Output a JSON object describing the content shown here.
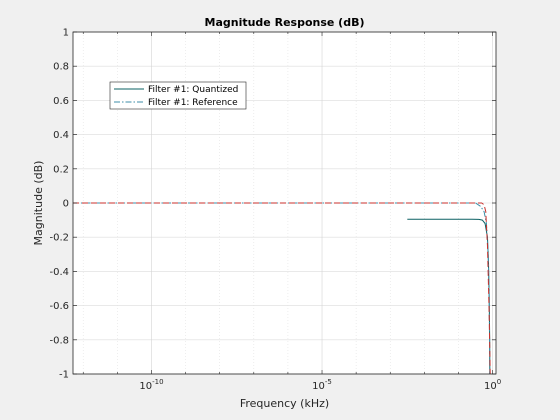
{
  "chart_data": {
    "type": "line",
    "title": "Magnitude Response (dB)",
    "xlabel": "Frequency (kHz)",
    "ylabel": "Magnitude (dB)",
    "x_scale": "log",
    "xlim_exp": [
      -12.3,
      0.1
    ],
    "ylim": [
      -1,
      1
    ],
    "x_tick_exponents": [
      -10,
      -5,
      0
    ],
    "x_tick_labels": [
      {
        "base": "10",
        "exp": "-10"
      },
      {
        "base": "10",
        "exp": "-5"
      },
      {
        "base": "10",
        "exp": "0"
      }
    ],
    "y_ticks": [
      -1,
      -0.8,
      -0.6,
      -0.4,
      -0.2,
      0,
      0.2,
      0.4,
      0.6,
      0.8,
      1
    ],
    "y_tick_labels": [
      "-1",
      "-0.8",
      "-0.6",
      "-0.4",
      "-0.2",
      "0",
      "0.2",
      "0.4",
      "0.6",
      "0.8",
      "1"
    ],
    "grid": true,
    "legend_position": "top-left",
    "series": [
      {
        "name": "Filter #1: Quantized",
        "color": "#0b6063",
        "dash": "solid",
        "points": [
          [
            -2.5,
            -0.095
          ],
          [
            -1.0,
            -0.095
          ],
          [
            -0.6,
            -0.095
          ],
          [
            -0.4,
            -0.096
          ],
          [
            -0.3,
            -0.1
          ],
          [
            -0.22,
            -0.12
          ],
          [
            -0.15,
            -0.2
          ],
          [
            -0.12,
            -0.35
          ],
          [
            -0.1,
            -0.55
          ],
          [
            -0.085,
            -0.8
          ],
          [
            -0.08,
            -1.0
          ]
        ]
      },
      {
        "name": "Filter #1: Reference",
        "color": "#3d8ea8",
        "dash": "dashdot",
        "points": [
          [
            -12.3,
            0.0
          ],
          [
            -1.0,
            0.0
          ],
          [
            -0.5,
            0.0
          ],
          [
            -0.35,
            -0.02
          ],
          [
            -0.25,
            -0.05
          ],
          [
            -0.18,
            -0.12
          ],
          [
            -0.13,
            -0.3
          ],
          [
            -0.1,
            -0.55
          ],
          [
            -0.09,
            -0.8
          ],
          [
            -0.085,
            -1.0
          ]
        ]
      },
      {
        "name": "",
        "color": "#c8302c",
        "dash": "dashed",
        "points": [
          [
            -12.3,
            0.0
          ],
          [
            -0.5,
            0.0
          ],
          [
            -0.32,
            0.0
          ],
          [
            -0.25,
            -0.01
          ],
          [
            -0.2,
            -0.05
          ],
          [
            -0.15,
            -0.25
          ],
          [
            -0.1,
            -0.65
          ],
          [
            -0.07,
            -1.0
          ]
        ]
      }
    ]
  }
}
